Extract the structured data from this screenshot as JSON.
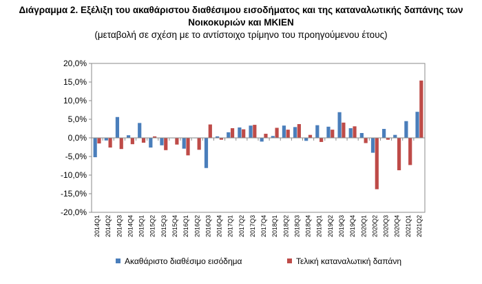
{
  "title_line1": "Διάγραμμα 2. Εξέλιξη του ακαθάριστου διαθέσιμου εισοδήματος και της καταναλωτικής δαπάνης των",
  "title_line2": "Νοικοκυριών και ΜΚΙΕΝ",
  "subtitle": "(μεταβολή σε σχέση με το αντίστοιχο τρίμηνο του προηγούμενου έτους)",
  "chart_data": {
    "type": "bar",
    "categories": [
      "2014Q1",
      "2014Q2",
      "2014Q3",
      "2014Q4",
      "2015Q1",
      "2015Q2",
      "2015Q3",
      "2015Q4",
      "2016Q1",
      "2016Q2",
      "2016Q3",
      "2016Q4",
      "2017Q1",
      "2017Q2",
      "2017Q3",
      "2017Q4",
      "2018Q1",
      "2018Q2",
      "2018Q3",
      "2018Q4",
      "2019Q1",
      "2019Q2",
      "2019Q3",
      "2019Q4",
      "2020Q1",
      "2020Q2",
      "2020Q3",
      "2020Q4",
      "2021Q1",
      "2021Q2"
    ],
    "series": [
      {
        "name": "Ακαθάριστο διαθέσιμο εισόδημα",
        "color": "#4a7ebb",
        "values": [
          -5.2,
          -0.7,
          5.6,
          0.7,
          4.0,
          -2.6,
          -2.0,
          0.0,
          -2.9,
          0.0,
          -8.1,
          0.4,
          1.5,
          2.8,
          3.3,
          -1.0,
          0.5,
          3.3,
          2.9,
          -0.8,
          3.4,
          3.0,
          6.9,
          2.6,
          1.3,
          -4.0,
          2.4,
          0.8,
          4.5,
          7.0
        ]
      },
      {
        "name": "Τελική καταναλωτική δαπάνη",
        "color": "#be4b48",
        "values": [
          -1.5,
          -2.6,
          -3.0,
          -1.7,
          -1.3,
          0.4,
          -3.3,
          -1.8,
          -4.7,
          -3.2,
          3.6,
          -0.5,
          2.6,
          2.3,
          3.5,
          1.1,
          2.7,
          2.2,
          3.7,
          0.8,
          -1.1,
          2.2,
          4.1,
          3.1,
          -1.4,
          -13.8,
          -0.5,
          -8.7,
          -7.3,
          15.4
        ]
      }
    ],
    "y_ticks": [
      "20,0%",
      "15,0%",
      "10,0%",
      "5,0%",
      "0,0%",
      "-5,0%",
      "-10,0%",
      "-15,0%",
      "-20,0%"
    ],
    "ylim": [
      -20,
      20
    ],
    "grid": false,
    "legend_position": "bottom"
  }
}
